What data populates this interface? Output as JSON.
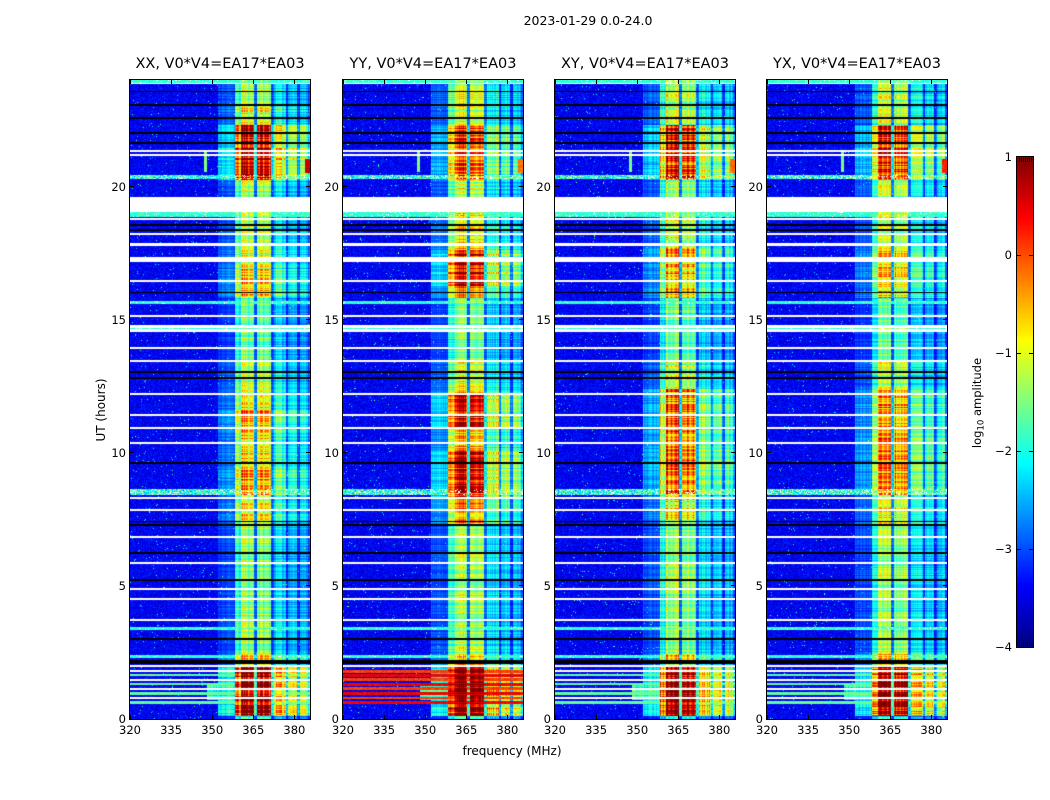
{
  "chart_data": {
    "type": "heatmap",
    "title": "2023-01-29 0.0-24.0",
    "x_axis": {
      "label": "frequency (MHz)",
      "range": [
        320,
        385.7
      ],
      "ticks": [
        320,
        335,
        350,
        365,
        380
      ]
    },
    "y_axis": {
      "label": "UT (hours)",
      "range": [
        0,
        24
      ],
      "ticks": [
        0,
        5,
        10,
        15,
        20
      ]
    },
    "colorbar": {
      "label_prefix": "log",
      "label_sub": "10",
      "label_suffix": " amplitude",
      "colormap": "jet",
      "range": [
        -4,
        1
      ],
      "ticks": [
        1,
        0,
        -1,
        -2,
        -3,
        -4
      ],
      "tick_labels": [
        "1",
        "0",
        "−1",
        "−2",
        "−3",
        "−4"
      ]
    },
    "baseline_mult": 0.42,
    "panels": [
      {
        "id": "XX",
        "title": "XX, V0*V4=EA17*EA03",
        "seed": 11,
        "stripe_style": "cool",
        "edge_blob_v": 0.45,
        "time_profile": [
          [
            0.1,
            1.95,
            1.02
          ],
          [
            1.95,
            2.45,
            0.68
          ],
          [
            2.45,
            7.3,
            0.52
          ],
          [
            7.3,
            8.4,
            0.62
          ],
          [
            8.4,
            9.4,
            0.72
          ],
          [
            9.4,
            10.7,
            0.64
          ],
          [
            10.7,
            11.6,
            0.72
          ],
          [
            11.6,
            12.5,
            0.62
          ],
          [
            12.5,
            13.4,
            0.55
          ],
          [
            13.4,
            15.8,
            0.48
          ],
          [
            15.8,
            16.9,
            0.68
          ],
          [
            16.9,
            17.8,
            0.62
          ],
          [
            17.8,
            19.05,
            0.56
          ],
          [
            19.62,
            20.25,
            0.55
          ],
          [
            20.25,
            22.3,
            0.96
          ],
          [
            22.3,
            23.2,
            0.62
          ],
          [
            23.2,
            24,
            0.56
          ]
        ]
      },
      {
        "id": "YY",
        "title": "YY, V0*V4=EA17*EA03",
        "seed": 22,
        "stripe_style": "warm",
        "edge_blob_v": -0.35,
        "time_profile": [
          [
            0.1,
            1.95,
            1.05
          ],
          [
            1.95,
            2.45,
            0.68
          ],
          [
            2.45,
            7.3,
            0.55
          ],
          [
            7.3,
            8.3,
            0.72
          ],
          [
            8.3,
            10.1,
            0.9
          ],
          [
            10.1,
            10.9,
            0.7
          ],
          [
            10.9,
            12.3,
            0.9
          ],
          [
            12.3,
            13.4,
            0.6
          ],
          [
            13.4,
            15.8,
            0.5
          ],
          [
            15.8,
            16.2,
            0.7
          ],
          [
            16.2,
            17.6,
            0.93
          ],
          [
            17.6,
            19.05,
            0.65
          ],
          [
            19.62,
            20.25,
            0.58
          ],
          [
            20.25,
            22.3,
            0.8
          ],
          [
            22.3,
            24,
            0.58
          ]
        ]
      },
      {
        "id": "XY",
        "title": "XY, V0*V4=EA17*EA03",
        "seed": 33,
        "stripe_style": "cool",
        "edge_blob_v": -0.35,
        "time_profile": [
          [
            0.1,
            1.95,
            1.0
          ],
          [
            1.95,
            2.45,
            0.66
          ],
          [
            2.45,
            7.3,
            0.53
          ],
          [
            7.3,
            8.4,
            0.64
          ],
          [
            8.4,
            12.4,
            0.78
          ],
          [
            12.4,
            13.4,
            0.58
          ],
          [
            13.4,
            15.8,
            0.48
          ],
          [
            15.8,
            17.7,
            0.72
          ],
          [
            17.7,
            19.05,
            0.58
          ],
          [
            19.62,
            20.25,
            0.55
          ],
          [
            20.25,
            22.3,
            0.88
          ],
          [
            22.3,
            24,
            0.56
          ]
        ]
      },
      {
        "id": "YX",
        "title": "YX, V0*V4=EA17*EA03",
        "seed": 44,
        "stripe_style": "cool",
        "edge_blob_v": 0.05,
        "time_profile": [
          [
            0.1,
            1.95,
            1.0
          ],
          [
            1.95,
            2.45,
            0.66
          ],
          [
            2.45,
            7.3,
            0.53
          ],
          [
            7.3,
            8.4,
            0.62
          ],
          [
            8.4,
            12.4,
            0.74
          ],
          [
            12.4,
            13.4,
            0.56
          ],
          [
            13.4,
            15.8,
            0.48
          ],
          [
            15.8,
            17.7,
            0.68
          ],
          [
            17.7,
            19.05,
            0.56
          ],
          [
            19.62,
            20.25,
            0.55
          ],
          [
            20.25,
            22.3,
            0.85
          ],
          [
            22.3,
            24,
            0.56
          ]
        ]
      }
    ],
    "band_profile": [
      [
        352,
        358.5,
        0.35
      ],
      [
        358.5,
        360.5,
        0.75
      ],
      [
        360.5,
        365.4,
        0.95
      ],
      [
        365.4,
        366.4,
        0.4
      ],
      [
        366.4,
        371.3,
        0.92
      ],
      [
        371.3,
        372.4,
        0.36
      ],
      [
        372.4,
        376.8,
        0.62
      ],
      [
        376.8,
        377.8,
        0.3
      ],
      [
        377.8,
        380.8,
        0.58
      ],
      [
        380.8,
        381.9,
        0.28
      ],
      [
        381.9,
        385,
        0.55
      ],
      [
        385,
        385.7,
        0.35
      ]
    ],
    "events": {
      "white_gaps": [
        [
          19.05,
          19.62
        ],
        [
          14.55,
          14.78
        ]
      ],
      "white_lines": [
        23.9,
        21.32,
        21.17,
        20.37,
        18.78,
        18.2,
        17.82,
        17.3,
        17.22,
        16.45,
        15.15,
        13.92,
        13.45,
        12.22,
        11.42,
        10.92,
        10.35,
        8.3,
        7.85,
        6.85,
        5.87,
        4.88,
        4.52,
        3.72,
        2.0
      ],
      "black_lines": [
        23.57,
        23.07,
        22.57,
        22.02,
        21.62,
        18.57,
        18.37,
        16.02,
        15.68,
        13.02,
        12.82,
        9.62,
        7.42,
        7.3,
        6.25,
        5.22,
        3.02
      ],
      "black_bands": [
        [
          2.07,
          2.23
        ]
      ],
      "cyan_bands": [
        [
          23.9,
          24.0
        ],
        [
          18.85,
          19.05
        ],
        [
          15.6,
          15.7
        ],
        [
          14.63,
          14.69
        ],
        [
          3.35,
          3.45
        ],
        [
          2.3,
          2.4
        ]
      ],
      "speckle_bands": [
        [
          8.42,
          8.65
        ],
        [
          20.28,
          20.42
        ]
      ],
      "stripe_zone": {
        "range": [
          0.55,
          1.85
        ],
        "lines": [
          0.62,
          0.79,
          0.96,
          1.13,
          1.31,
          1.48,
          1.65,
          1.79
        ]
      },
      "rfi_spike": {
        "f": 347.5,
        "t": [
          20.55,
          21.35
        ]
      },
      "edge_blob_t": [
        20.5,
        21.05
      ],
      "band_bleed": {
        "t": [
          0.7,
          1.35
        ],
        "f": [
          348,
          358.5
        ],
        "strength": 0.38
      }
    }
  }
}
